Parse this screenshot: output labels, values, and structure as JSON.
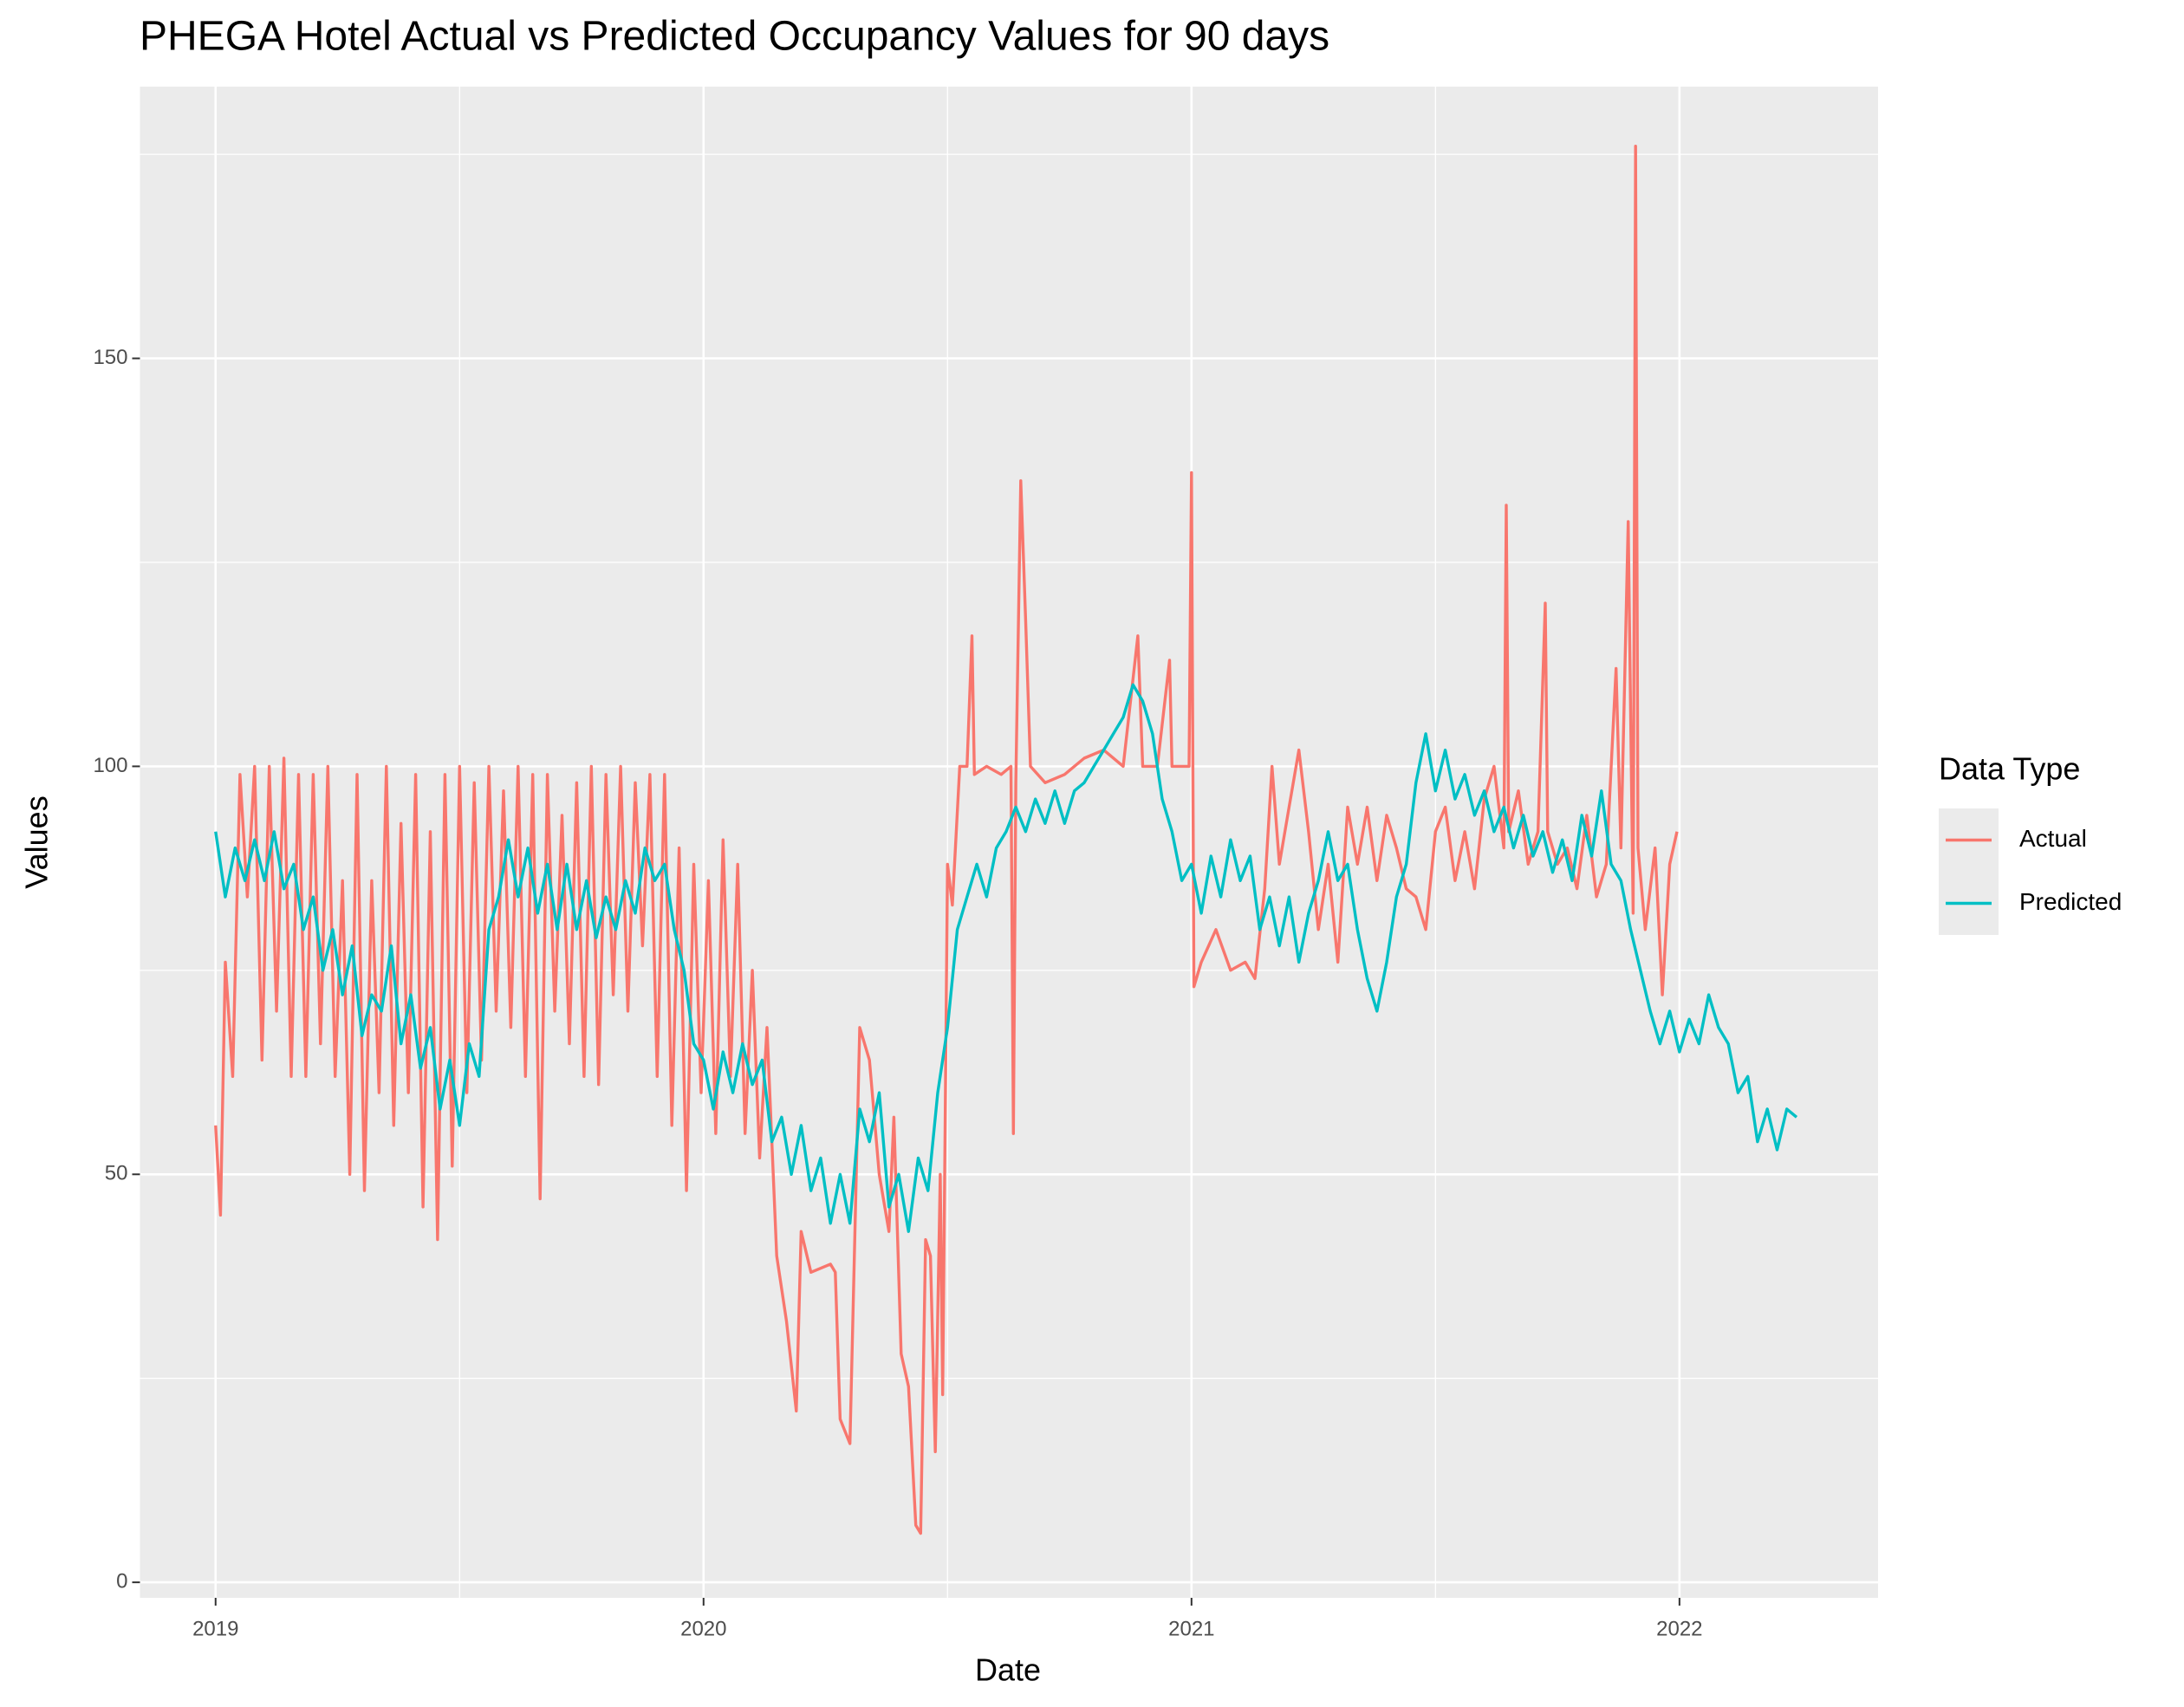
{
  "chart_data": {
    "type": "line",
    "title": "PHEGA Hotel Actual vs Predicted Occupancy Values for 90 days",
    "x_label": "Date",
    "y_label": "Values",
    "xlim": [
      2018.845,
      2022.407
    ],
    "ylim": [
      -1.9,
      183.3
    ],
    "xticks": [
      2019,
      2020,
      2021,
      2022
    ],
    "yticks": [
      0,
      50,
      100,
      150
    ],
    "minor_xticks": [
      2019.5,
      2020.5,
      2021.5
    ],
    "minor_yticks": [
      25,
      75,
      125,
      175
    ],
    "grid": true,
    "legend": {
      "title": "Data Type",
      "position": "right"
    },
    "series": [
      {
        "name": "Actual",
        "color": "#F8766D",
        "x": [
          2019.0,
          2019.01,
          2019.02,
          2019.035,
          2019.05,
          2019.065,
          2019.08,
          2019.095,
          2019.11,
          2019.125,
          2019.14,
          2019.155,
          2019.17,
          2019.185,
          2019.2,
          2019.215,
          2019.23,
          2019.245,
          2019.26,
          2019.275,
          2019.29,
          2019.305,
          2019.32,
          2019.335,
          2019.35,
          2019.365,
          2019.38,
          2019.395,
          2019.41,
          2019.425,
          2019.44,
          2019.455,
          2019.47,
          2019.485,
          2019.5,
          2019.515,
          2019.53,
          2019.545,
          2019.56,
          2019.575,
          2019.59,
          2019.605,
          2019.62,
          2019.635,
          2019.65,
          2019.665,
          2019.68,
          2019.695,
          2019.71,
          2019.725,
          2019.74,
          2019.755,
          2019.77,
          2019.785,
          2019.8,
          2019.815,
          2019.83,
          2019.845,
          2019.86,
          2019.875,
          2019.89,
          2019.905,
          2019.92,
          2019.935,
          2019.95,
          2019.965,
          2019.98,
          2019.995,
          2020.01,
          2020.025,
          2020.04,
          2020.055,
          2020.07,
          2020.085,
          2020.1,
          2020.115,
          2020.13,
          2020.15,
          2020.17,
          2020.19,
          2020.2,
          2020.22,
          2020.26,
          2020.27,
          2020.28,
          2020.3,
          2020.32,
          2020.34,
          2020.36,
          2020.38,
          2020.39,
          2020.405,
          2020.42,
          2020.435,
          2020.445,
          2020.455,
          2020.465,
          2020.475,
          2020.485,
          2020.49,
          2020.5,
          2020.51,
          2020.525,
          2020.54,
          2020.55,
          2020.555,
          2020.58,
          2020.61,
          2020.63,
          2020.635,
          2020.64,
          2020.65,
          2020.66,
          2020.67,
          2020.7,
          2020.74,
          2020.78,
          2020.82,
          2020.86,
          2020.89,
          2020.9,
          2020.93,
          2020.955,
          2020.96,
          2020.995,
          2021.0,
          2021.005,
          2021.02,
          2021.05,
          2021.08,
          2021.11,
          2021.13,
          2021.15,
          2021.165,
          2021.18,
          2021.2,
          2021.22,
          2021.24,
          2021.26,
          2021.28,
          2021.3,
          2021.32,
          2021.34,
          2021.36,
          2021.38,
          2021.4,
          2021.42,
          2021.44,
          2021.46,
          2021.48,
          2021.5,
          2021.52,
          2021.54,
          2021.56,
          2021.58,
          2021.6,
          2021.62,
          2021.64,
          2021.645,
          2021.65,
          2021.67,
          2021.69,
          2021.71,
          2021.725,
          2021.73,
          2021.75,
          2021.77,
          2021.79,
          2021.81,
          2021.83,
          2021.85,
          2021.87,
          2021.88,
          2021.895,
          2021.905,
          2021.91,
          2021.915,
          2021.93,
          2021.95,
          2021.965,
          2021.98,
          2021.995
        ],
        "values": [
          56,
          45,
          76,
          62,
          99,
          84,
          100,
          64,
          100,
          70,
          101,
          62,
          99,
          62,
          99,
          66,
          100,
          62,
          86,
          50,
          99,
          48,
          86,
          60,
          100,
          56,
          93,
          60,
          99,
          46,
          92,
          42,
          99,
          51,
          100,
          60,
          98,
          64,
          100,
          70,
          97,
          68,
          100,
          62,
          99,
          47,
          99,
          70,
          94,
          66,
          98,
          62,
          100,
          61,
          99,
          72,
          100,
          70,
          98,
          78,
          99,
          62,
          99,
          56,
          90,
          48,
          88,
          60,
          86,
          55,
          91,
          62,
          88,
          55,
          75,
          52,
          68,
          40,
          32,
          21,
          43,
          38,
          39,
          38,
          20,
          17,
          68,
          64,
          50,
          43,
          57,
          28,
          24,
          7,
          6,
          42,
          40,
          16,
          50,
          23,
          88,
          83,
          100,
          100,
          116,
          99,
          100,
          99,
          100,
          55,
          98,
          135,
          118,
          100,
          98,
          99,
          101,
          102,
          100,
          116,
          100,
          100,
          113,
          100,
          100,
          136,
          73,
          76,
          80,
          75,
          76,
          74,
          85,
          100,
          88,
          95,
          102,
          92,
          80,
          88,
          76,
          95,
          88,
          95,
          86,
          94,
          90,
          85,
          84,
          80,
          92,
          95,
          86,
          92,
          85,
          96,
          100,
          90,
          132,
          92,
          97,
          88,
          92,
          120,
          92,
          88,
          90,
          85,
          94,
          84,
          88,
          112,
          90,
          130,
          82,
          176,
          90,
          80,
          90,
          72,
          88,
          92
        ]
      },
      {
        "name": "Predicted",
        "color": "#00BFC4",
        "x": [
          2019.0,
          2019.02,
          2019.04,
          2019.06,
          2019.08,
          2019.1,
          2019.12,
          2019.14,
          2019.16,
          2019.18,
          2019.2,
          2019.22,
          2019.24,
          2019.26,
          2019.28,
          2019.3,
          2019.32,
          2019.34,
          2019.36,
          2019.38,
          2019.4,
          2019.42,
          2019.44,
          2019.46,
          2019.48,
          2019.5,
          2019.52,
          2019.54,
          2019.56,
          2019.58,
          2019.6,
          2019.62,
          2019.64,
          2019.66,
          2019.68,
          2019.7,
          2019.72,
          2019.74,
          2019.76,
          2019.78,
          2019.8,
          2019.82,
          2019.84,
          2019.86,
          2019.88,
          2019.9,
          2019.92,
          2019.94,
          2019.96,
          2019.98,
          2020.0,
          2020.02,
          2020.04,
          2020.06,
          2020.08,
          2020.1,
          2020.12,
          2020.14,
          2020.16,
          2020.18,
          2020.2,
          2020.22,
          2020.24,
          2020.26,
          2020.28,
          2020.3,
          2020.32,
          2020.34,
          2020.36,
          2020.38,
          2020.4,
          2020.42,
          2020.44,
          2020.46,
          2020.48,
          2020.5,
          2020.52,
          2020.54,
          2020.56,
          2020.58,
          2020.6,
          2020.62,
          2020.64,
          2020.66,
          2020.68,
          2020.7,
          2020.72,
          2020.74,
          2020.76,
          2020.78,
          2020.8,
          2020.82,
          2020.84,
          2020.86,
          2020.88,
          2020.9,
          2020.92,
          2020.94,
          2020.96,
          2020.98,
          2021.0,
          2021.02,
          2021.04,
          2021.06,
          2021.08,
          2021.1,
          2021.12,
          2021.14,
          2021.16,
          2021.18,
          2021.2,
          2021.22,
          2021.24,
          2021.26,
          2021.28,
          2021.3,
          2021.32,
          2021.34,
          2021.36,
          2021.38,
          2021.4,
          2021.42,
          2021.44,
          2021.46,
          2021.48,
          2021.5,
          2021.52,
          2021.54,
          2021.56,
          2021.58,
          2021.6,
          2021.62,
          2021.64,
          2021.66,
          2021.68,
          2021.7,
          2021.72,
          2021.74,
          2021.76,
          2021.78,
          2021.8,
          2021.82,
          2021.84,
          2021.86,
          2021.88,
          2021.9,
          2021.92,
          2021.94,
          2021.96,
          2021.98,
          2022.0,
          2022.02,
          2022.04,
          2022.06,
          2022.08,
          2022.1,
          2022.12,
          2022.14,
          2022.16,
          2022.18,
          2022.2,
          2022.22,
          2022.24
        ],
        "values": [
          92,
          84,
          90,
          86,
          91,
          86,
          92,
          85,
          88,
          80,
          84,
          75,
          80,
          72,
          78,
          67,
          72,
          70,
          78,
          66,
          72,
          63,
          68,
          58,
          64,
          56,
          66,
          62,
          80,
          84,
          91,
          84,
          90,
          82,
          88,
          80,
          88,
          80,
          86,
          79,
          84,
          80,
          86,
          82,
          90,
          86,
          88,
          80,
          75,
          66,
          64,
          58,
          65,
          60,
          66,
          61,
          64,
          54,
          57,
          50,
          56,
          48,
          52,
          44,
          50,
          44,
          58,
          54,
          60,
          46,
          50,
          43,
          52,
          48,
          60,
          68,
          80,
          84,
          88,
          84,
          90,
          92,
          95,
          92,
          96,
          93,
          97,
          93,
          97,
          98,
          100,
          102,
          104,
          106,
          110,
          108,
          104,
          96,
          92,
          86,
          88,
          82,
          89,
          84,
          91,
          86,
          89,
          80,
          84,
          78,
          84,
          76,
          82,
          86,
          92,
          86,
          88,
          80,
          74,
          70,
          76,
          84,
          88,
          98,
          104,
          97,
          102,
          96,
          99,
          94,
          97,
          92,
          95,
          90,
          94,
          89,
          92,
          87,
          91,
          86,
          94,
          89,
          97,
          88,
          86,
          80,
          75,
          70,
          66,
          70,
          65,
          69,
          66,
          72,
          68,
          66,
          60,
          62,
          54,
          58,
          53,
          58,
          57
        ]
      }
    ]
  }
}
